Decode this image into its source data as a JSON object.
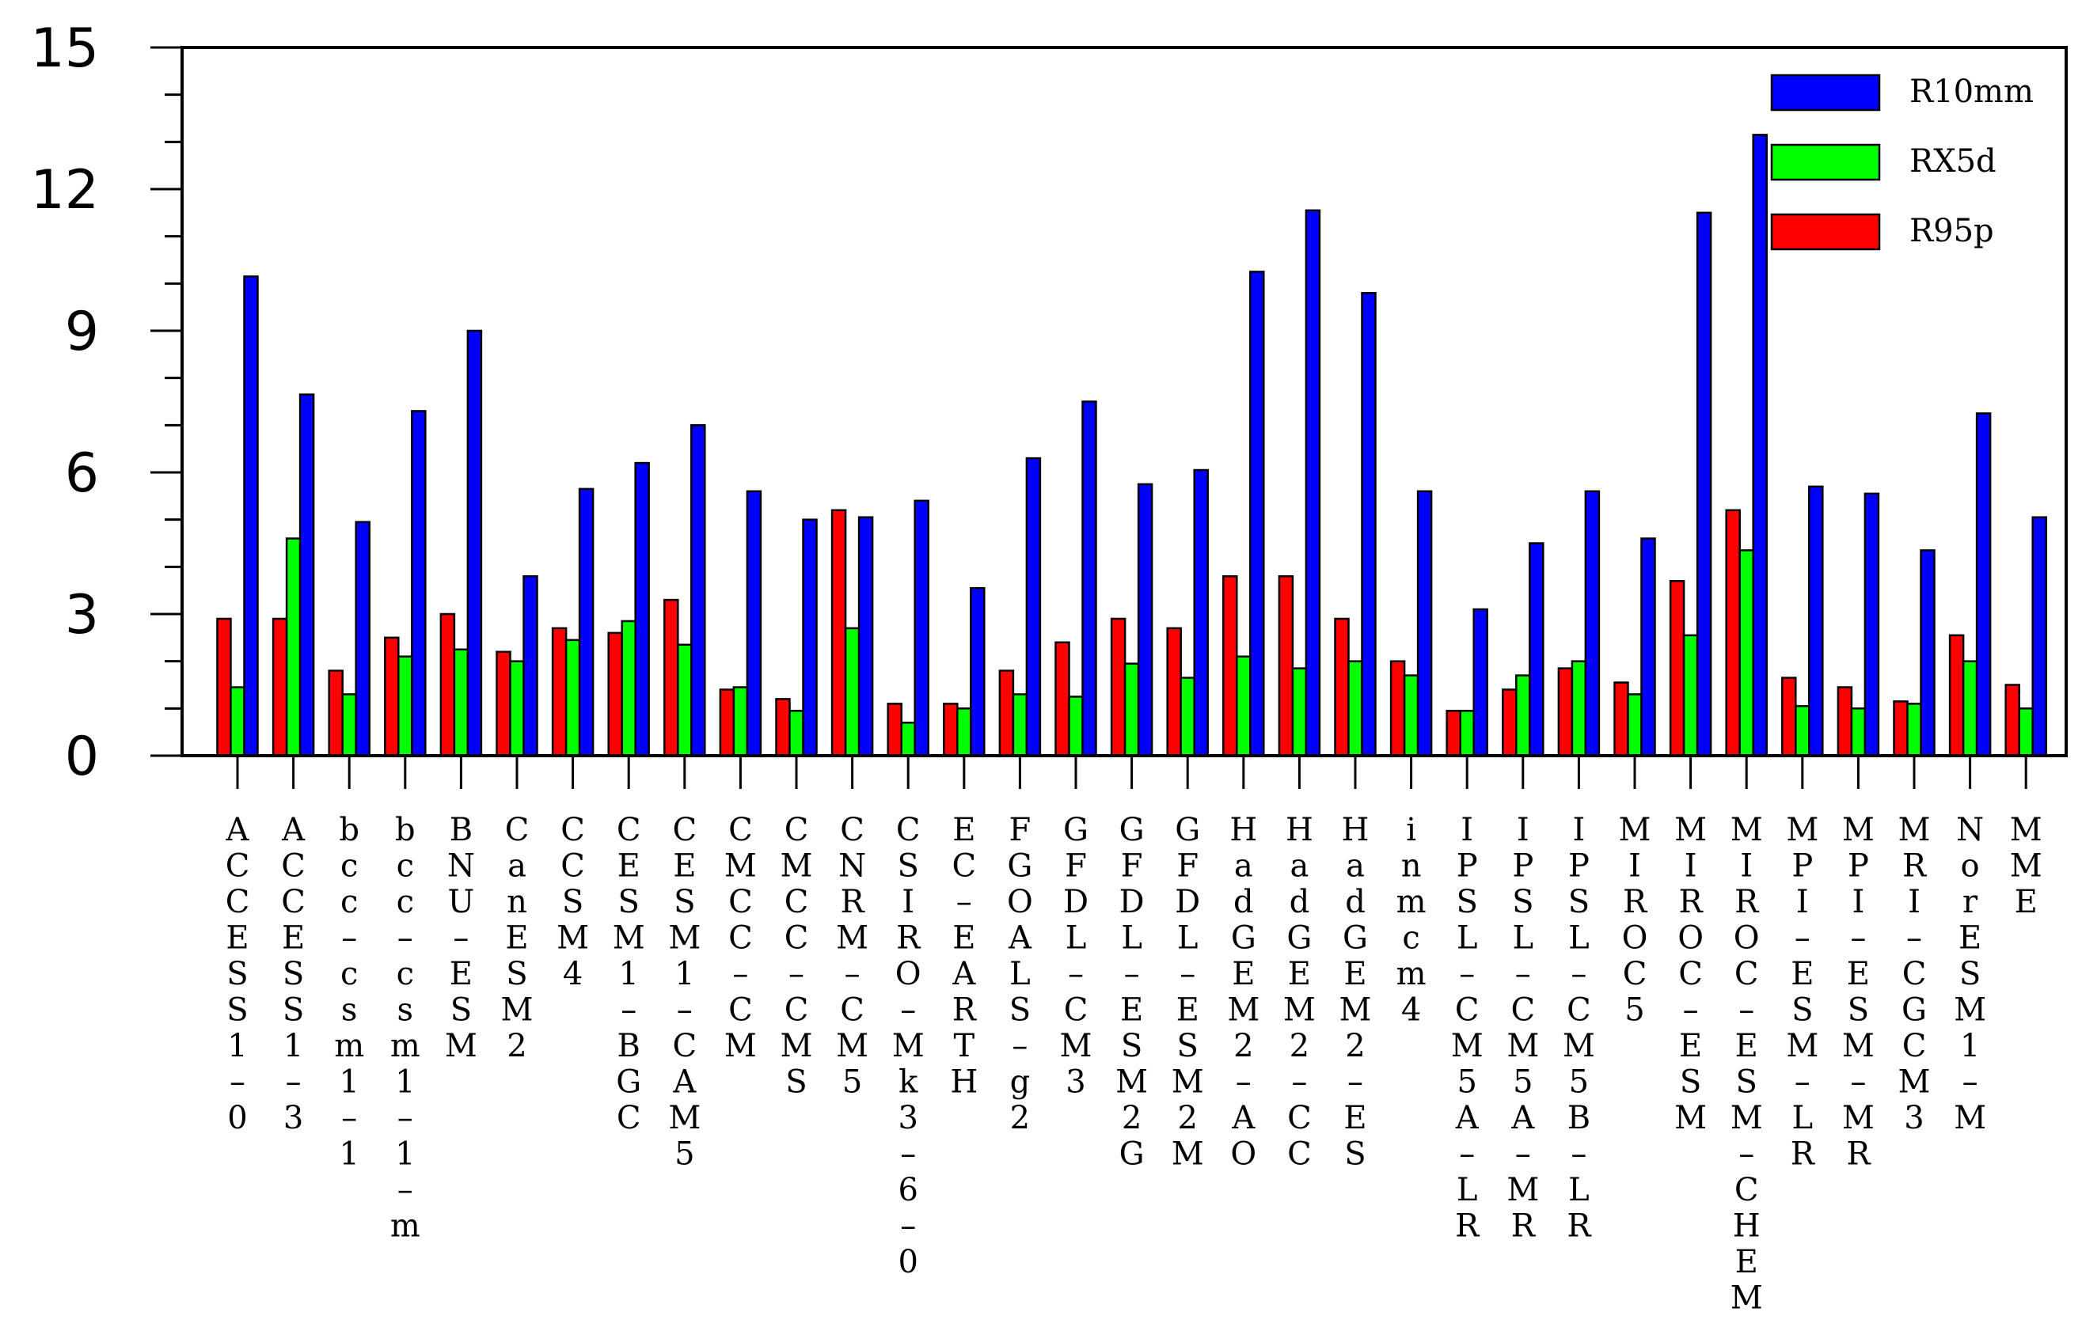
{
  "chart_data": {
    "type": "bar",
    "title": "",
    "xlabel": "",
    "ylabel": "",
    "ylim": [
      0,
      15
    ],
    "yticks": [
      0,
      3,
      6,
      9,
      12,
      15
    ],
    "grid": false,
    "legend_position": "top-right",
    "categories": [
      "ACCESS1-0",
      "ACCESS1-3",
      "bcc-csm1-1",
      "bcc-csm1-1-m",
      "BNU-ESM",
      "CanESM2",
      "CCSM4",
      "CESM1-BGC",
      "CESM1-CAM5",
      "CMCC-CM",
      "CMCC-CMS",
      "CNRM-CM5",
      "CSIRO-Mk3-6-0",
      "EC-EARTH",
      "FGOALS-g2",
      "GFDL-CM3",
      "GFDL-ESM2G",
      "GFDL-ESM2M",
      "HadGEM2-AO",
      "HadGEM2-CC",
      "HadGEM2-ES",
      "inmcm4",
      "IPSL-CM5A-LR",
      "IPSL-CM5A-MR",
      "IPSL-CM5B-LR",
      "MIROC5",
      "MIROC-ESM",
      "MIROC-ESM-CHEM",
      "MPI-ESM-LR",
      "MPI-ESM-MR",
      "MRI-CGCM3",
      "NorESM1-M",
      "MME"
    ],
    "series": [
      {
        "name": "R95p",
        "color": "#ff0000",
        "values": [
          2.9,
          2.9,
          1.8,
          2.5,
          3.0,
          2.2,
          2.7,
          2.6,
          3.3,
          1.4,
          1.2,
          5.2,
          1.1,
          1.1,
          1.8,
          2.4,
          2.9,
          2.7,
          3.8,
          3.8,
          2.9,
          2.0,
          0.95,
          1.4,
          1.85,
          1.55,
          3.7,
          5.2,
          1.65,
          1.45,
          1.15,
          2.55,
          1.5
        ]
      },
      {
        "name": "RX5d",
        "color": "#00ff00",
        "values": [
          1.45,
          4.6,
          1.3,
          2.1,
          2.25,
          2.0,
          2.45,
          2.85,
          2.35,
          1.45,
          0.95,
          2.7,
          0.7,
          1.0,
          1.3,
          1.25,
          1.95,
          1.65,
          2.1,
          1.85,
          2.0,
          1.7,
          0.95,
          1.7,
          2.0,
          1.3,
          2.55,
          4.35,
          1.05,
          1.0,
          1.1,
          2.0,
          1.0
        ]
      },
      {
        "name": "R10mm",
        "color": "#0000ff",
        "values": [
          10.15,
          7.65,
          4.95,
          7.3,
          9.0,
          3.8,
          5.65,
          6.2,
          7.0,
          5.6,
          5.0,
          5.05,
          5.4,
          3.55,
          6.3,
          7.5,
          5.75,
          6.05,
          10.25,
          11.55,
          9.8,
          5.6,
          3.1,
          4.5,
          5.6,
          4.6,
          11.5,
          13.15,
          5.7,
          5.55,
          4.35,
          7.25,
          5.05
        ]
      }
    ]
  }
}
